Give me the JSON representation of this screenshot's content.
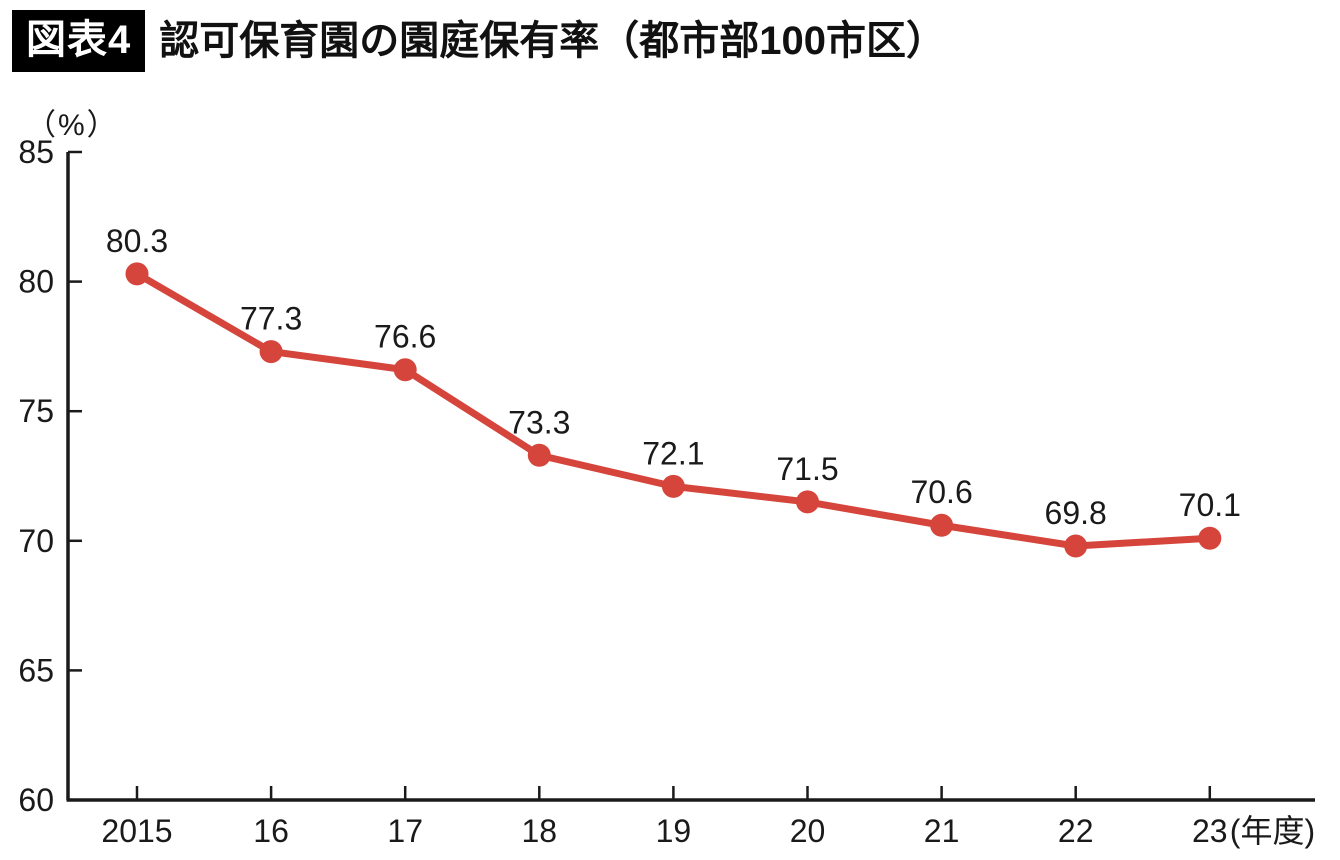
{
  "header": {
    "badge": "図表4",
    "title": "認可保育園の園庭保有率（都市部100市区）"
  },
  "chart_data": {
    "type": "line",
    "title": "認可保育園の園庭保有率（都市部100市区）",
    "unit_label": "（%）",
    "categories": [
      "2015",
      "16",
      "17",
      "18",
      "19",
      "20",
      "21",
      "22",
      "23"
    ],
    "x_axis_suffix": "(年度)",
    "series": [
      {
        "values": [
          80.3,
          77.3,
          76.6,
          73.3,
          72.1,
          71.5,
          70.6,
          69.8,
          70.1
        ],
        "color": "#d5453b"
      }
    ],
    "point_labels": [
      "80.3",
      "77.3",
      "76.6",
      "73.3",
      "72.1",
      "71.5",
      "70.6",
      "69.8",
      "70.1"
    ],
    "ylim": [
      60,
      85
    ],
    "yticks": [
      60,
      65,
      70,
      75,
      80,
      85
    ],
    "grid": false,
    "legend": "none",
    "xlabel": "年度",
    "ylabel": "%"
  },
  "colors": {
    "line": "#d5453b",
    "axis": "#1a1a1a",
    "text": "#1a1a1a",
    "badge_bg": "#000000",
    "badge_text": "#ffffff",
    "background": "#ffffff"
  }
}
